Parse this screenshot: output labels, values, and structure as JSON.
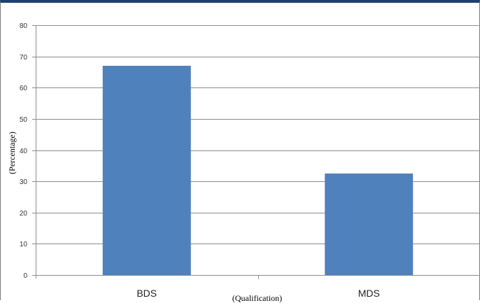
{
  "chart_data": {
    "type": "bar",
    "categories": [
      "BDS",
      "MDS"
    ],
    "values": [
      67,
      32.5
    ],
    "title": "",
    "xlabel": "(Qualification)",
    "ylabel": "(Percentage)",
    "ylim": [
      0,
      80
    ],
    "yticks": [
      "0",
      "10",
      "20",
      "30",
      "40",
      "50",
      "60",
      "70",
      "80"
    ],
    "grid": true,
    "legend": "none",
    "colors": {
      "bar": "#4f81bd",
      "grid": "#8c8c8c",
      "frame_top": "#1f3f6e"
    }
  }
}
